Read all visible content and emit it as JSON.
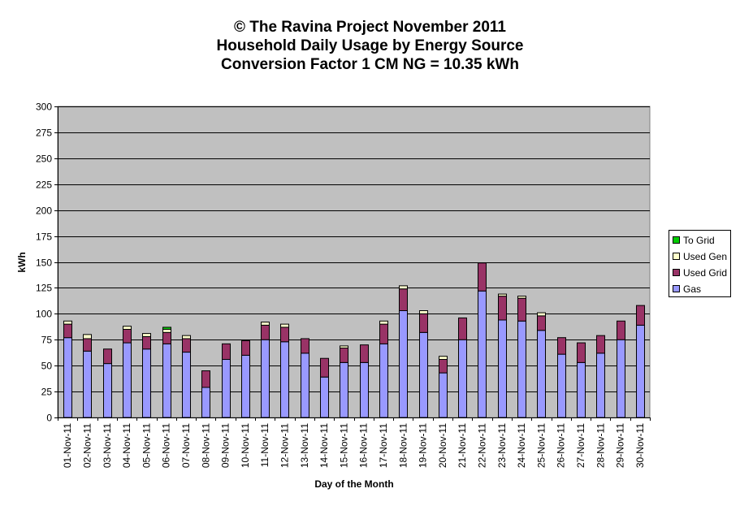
{
  "chart_data": {
    "type": "bar",
    "stacked": true,
    "title": [
      "© The Ravina Project November 2011",
      "Household Daily Usage by Energy Source",
      "Conversion Factor 1 CM NG = 10.35 kWh"
    ],
    "xlabel": "Day of the Month",
    "ylabel": "kWh",
    "ylim": [
      0,
      300
    ],
    "yticks": [
      0,
      25,
      50,
      75,
      100,
      125,
      150,
      175,
      200,
      225,
      250,
      275,
      300
    ],
    "grid": true,
    "legend_position": "right",
    "categories": [
      "01-Nov-11",
      "02-Nov-11",
      "03-Nov-11",
      "04-Nov-11",
      "05-Nov-11",
      "06-Nov-11",
      "07-Nov-11",
      "08-Nov-11",
      "09-Nov-11",
      "10-Nov-11",
      "11-Nov-11",
      "12-Nov-11",
      "13-Nov-11",
      "14-Nov-11",
      "15-Nov-11",
      "16-Nov-11",
      "17-Nov-11",
      "18-Nov-11",
      "19-Nov-11",
      "20-Nov-11",
      "21-Nov-11",
      "22-Nov-11",
      "23-Nov-11",
      "24-Nov-11",
      "25-Nov-11",
      "26-Nov-11",
      "27-Nov-11",
      "28-Nov-11",
      "29-Nov-11",
      "30-Nov-11"
    ],
    "series": [
      {
        "name": "Gas",
        "color": "#9999ff",
        "values": [
          77,
          64,
          52,
          72,
          66,
          71,
          63,
          29,
          56,
          60,
          75,
          73,
          62,
          39,
          53,
          53,
          71,
          103,
          82,
          43,
          75,
          122,
          94,
          93,
          84,
          61,
          53,
          62,
          75,
          89
        ]
      },
      {
        "name": "Used Grid",
        "color": "#993366",
        "values": [
          13,
          12,
          14,
          13,
          12,
          11,
          13,
          16,
          15,
          14,
          14,
          14,
          14,
          18,
          14,
          17,
          19,
          21,
          18,
          13,
          21,
          27,
          23,
          22,
          14,
          16,
          19,
          17,
          18,
          19
        ]
      },
      {
        "name": "Used Gen",
        "color": "#ffffcc",
        "values": [
          3,
          4,
          0,
          3,
          3,
          3,
          3,
          0,
          0,
          0,
          3,
          3,
          0,
          0,
          2,
          0,
          3,
          3,
          3,
          3,
          0,
          0,
          2,
          2,
          3,
          0,
          0,
          0,
          0,
          0
        ]
      },
      {
        "name": "To Grid",
        "color": "#00cc00",
        "values": [
          0,
          0,
          0,
          0,
          0,
          2,
          0,
          0,
          0,
          0,
          0,
          0,
          0,
          0,
          0,
          0,
          0,
          0,
          0,
          0,
          0,
          0,
          0,
          0,
          0,
          0,
          0,
          0,
          0,
          0
        ]
      }
    ],
    "legend_order": [
      "To Grid",
      "Used Gen",
      "Used Grid",
      "Gas"
    ],
    "plot_background": "#c0c0c0"
  }
}
